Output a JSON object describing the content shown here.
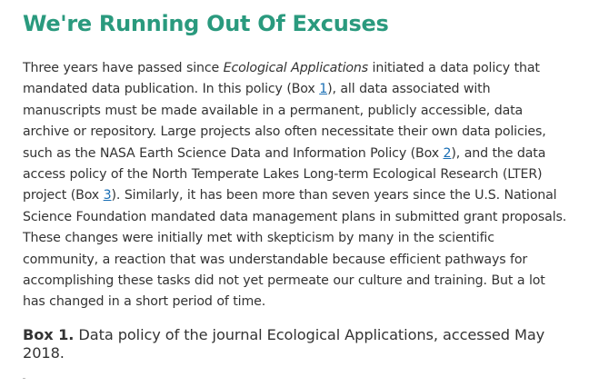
{
  "article": {
    "heading": "We're Running Out Of Excuses",
    "paragraph": {
      "t1": "Three years have passed since ",
      "journal": "Ecological Applications",
      "t2": " initiated a data policy that mandated data publication. In this policy (Box ",
      "ref1": "1",
      "t3": "), all data associated with manuscripts must be made available in a permanent, publicly accessible, data archive or repository. Large projects also often necessitate their own data policies, such as the NASA Earth Science Data and Information Policy (Box ",
      "ref2": "2",
      "t4": "), and the data access policy of the North Temperate Lakes Long-term Ecological Research (LTER) project (Box ",
      "ref3": "3",
      "t5": "). Similarly, it has been more than seven years since the U.S. National Science Foundation mandated data management plans in submitted grant proposals. These changes were initially met with skepticism by many in the scientific community, a reaction that was understandable because efficient pathways for accomplishing these tasks did not yet permeate our culture and training. But a lot has changed in a short period of time."
    },
    "box1": {
      "label": "Box 1.",
      "caption": " Data policy of the journal Ecological Applications, accessed May 2018."
    }
  }
}
